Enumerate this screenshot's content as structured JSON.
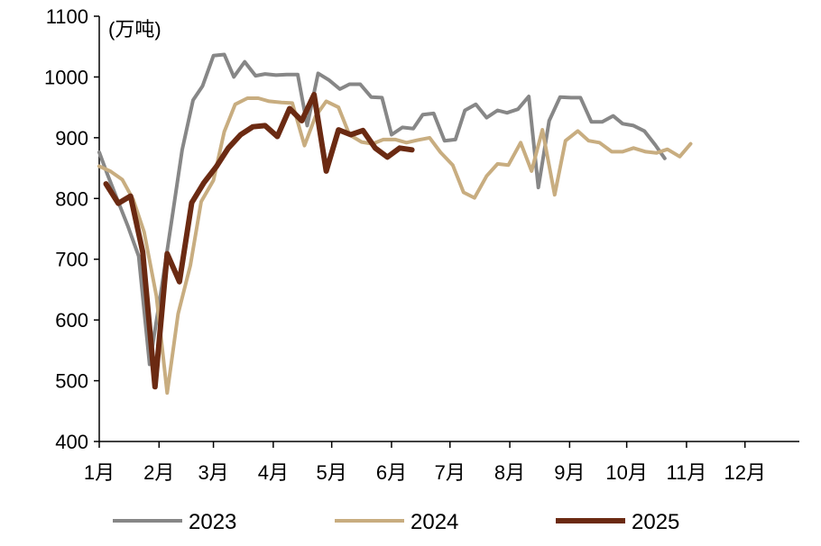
{
  "chart_data": {
    "type": "line",
    "unit_label": "(万吨)",
    "ylim": [
      400,
      1100
    ],
    "y_ticks": [
      400,
      500,
      600,
      700,
      800,
      900,
      1000,
      1100
    ],
    "x_range": [
      1,
      52.5
    ],
    "x_ticks": [
      {
        "label": "1月",
        "x": 1
      },
      {
        "label": "2月",
        "x": 5.4
      },
      {
        "label": "3月",
        "x": 9.4
      },
      {
        "label": "4月",
        "x": 13.8
      },
      {
        "label": "5月",
        "x": 18.1
      },
      {
        "label": "6月",
        "x": 22.5
      },
      {
        "label": "7月",
        "x": 26.8
      },
      {
        "label": "8月",
        "x": 31.2
      },
      {
        "label": "9月",
        "x": 35.6
      },
      {
        "label": "10月",
        "x": 39.8
      },
      {
        "label": "11月",
        "x": 44.2
      },
      {
        "label": "12月",
        "x": 48.5
      }
    ],
    "grid": false,
    "legend_position": "bottom",
    "series": [
      {
        "name": "2023",
        "color": "#878787",
        "width": 4,
        "points": [
          [
            1,
            876
          ],
          [
            1.6,
            840
          ],
          [
            2.3,
            800
          ],
          [
            3.1,
            755
          ],
          [
            3.9,
            705
          ],
          [
            4.7,
            527
          ],
          [
            5.5,
            640
          ],
          [
            6.3,
            760
          ],
          [
            7.1,
            880
          ],
          [
            7.9,
            962
          ],
          [
            8.6,
            985
          ],
          [
            9.4,
            1035
          ],
          [
            10.2,
            1037
          ],
          [
            10.9,
            1000
          ],
          [
            11.7,
            1025
          ],
          [
            12.5,
            1002
          ],
          [
            13.2,
            1005
          ],
          [
            14.0,
            1003
          ],
          [
            14.8,
            1004
          ],
          [
            15.6,
            1004
          ],
          [
            16.3,
            920
          ],
          [
            17.1,
            1006
          ],
          [
            17.9,
            995
          ],
          [
            18.7,
            980
          ],
          [
            19.4,
            988
          ],
          [
            20.2,
            988
          ],
          [
            21.0,
            967
          ],
          [
            21.8,
            966
          ],
          [
            22.5,
            905
          ],
          [
            23.3,
            917
          ],
          [
            24.1,
            915
          ],
          [
            24.8,
            938
          ],
          [
            25.6,
            940
          ],
          [
            26.4,
            895
          ],
          [
            27.2,
            897
          ],
          [
            27.9,
            945
          ],
          [
            28.7,
            955
          ],
          [
            29.5,
            933
          ],
          [
            30.3,
            945
          ],
          [
            31.0,
            941
          ],
          [
            31.8,
            947
          ],
          [
            32.6,
            968
          ],
          [
            33.3,
            818
          ],
          [
            34.1,
            928
          ],
          [
            34.9,
            967
          ],
          [
            35.7,
            966
          ],
          [
            36.4,
            966
          ],
          [
            37.2,
            926
          ],
          [
            38.0,
            926
          ],
          [
            38.8,
            936
          ],
          [
            39.5,
            923
          ],
          [
            40.3,
            920
          ],
          [
            41.1,
            911
          ],
          [
            41.9,
            888
          ],
          [
            42.6,
            866
          ]
        ]
      },
      {
        "name": "2024",
        "color": "#C8AD80",
        "width": 4,
        "points": [
          [
            1,
            853
          ],
          [
            1.8,
            845
          ],
          [
            2.7,
            831
          ],
          [
            3.5,
            798
          ],
          [
            4.3,
            745
          ],
          [
            5.2,
            640
          ],
          [
            6.0,
            480
          ],
          [
            6.8,
            610
          ],
          [
            7.7,
            690
          ],
          [
            8.5,
            795
          ],
          [
            9.4,
            830
          ],
          [
            10.2,
            910
          ],
          [
            11.0,
            955
          ],
          [
            11.9,
            965
          ],
          [
            12.7,
            965
          ],
          [
            13.5,
            960
          ],
          [
            14.4,
            958
          ],
          [
            15.2,
            957
          ],
          [
            16.1,
            887
          ],
          [
            16.9,
            935
          ],
          [
            17.7,
            960
          ],
          [
            18.6,
            950
          ],
          [
            19.4,
            905
          ],
          [
            20.3,
            893
          ],
          [
            21.1,
            890
          ],
          [
            21.9,
            897
          ],
          [
            22.8,
            897
          ],
          [
            23.6,
            892
          ],
          [
            24.4,
            896
          ],
          [
            25.3,
            900
          ],
          [
            26.1,
            876
          ],
          [
            27.0,
            855
          ],
          [
            27.8,
            810
          ],
          [
            28.6,
            801
          ],
          [
            29.5,
            837
          ],
          [
            30.3,
            857
          ],
          [
            31.1,
            855
          ],
          [
            32.0,
            892
          ],
          [
            32.8,
            845
          ],
          [
            33.6,
            913
          ],
          [
            34.5,
            806
          ],
          [
            35.3,
            895
          ],
          [
            36.2,
            911
          ],
          [
            37.0,
            895
          ],
          [
            37.8,
            892
          ],
          [
            38.7,
            877
          ],
          [
            39.5,
            877
          ],
          [
            40.3,
            883
          ],
          [
            41.2,
            877
          ],
          [
            42.0,
            875
          ],
          [
            42.8,
            881
          ],
          [
            43.7,
            869
          ],
          [
            44.5,
            890
          ]
        ]
      },
      {
        "name": "2025",
        "color": "#6B2A12",
        "width": 6,
        "points": [
          [
            1.5,
            824
          ],
          [
            2.4,
            792
          ],
          [
            3.3,
            804
          ],
          [
            4.2,
            712
          ],
          [
            5.1,
            490
          ],
          [
            6.0,
            709
          ],
          [
            6.9,
            663
          ],
          [
            7.8,
            793
          ],
          [
            8.7,
            826
          ],
          [
            9.6,
            852
          ],
          [
            10.5,
            883
          ],
          [
            11.4,
            905
          ],
          [
            12.3,
            918
          ],
          [
            13.2,
            920
          ],
          [
            14.1,
            902
          ],
          [
            15.0,
            948
          ],
          [
            15.9,
            928
          ],
          [
            16.8,
            971
          ],
          [
            17.7,
            845
          ],
          [
            18.6,
            913
          ],
          [
            19.5,
            905
          ],
          [
            20.4,
            912
          ],
          [
            21.3,
            883
          ],
          [
            22.2,
            868
          ],
          [
            23.1,
            883
          ],
          [
            24.0,
            880
          ]
        ]
      }
    ]
  }
}
